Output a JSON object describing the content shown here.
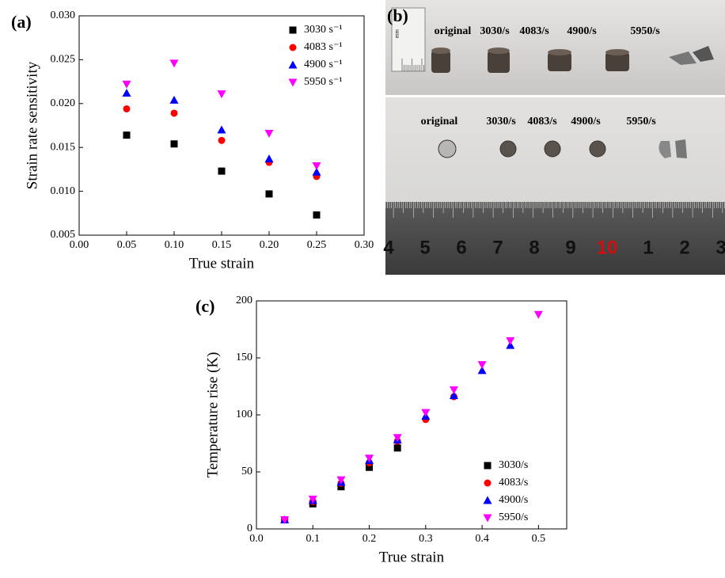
{
  "chart_data": [
    {
      "type": "scatter",
      "label": "(a)",
      "x_label": "True strain",
      "y_label": "Strain rate sensitivity",
      "xlim": [
        0,
        0.3
      ],
      "ylim": [
        0.005,
        0.03
      ],
      "xticks": [
        {
          "value": 0,
          "label": "0.00"
        },
        0.05,
        {
          "value": 0.1,
          "label": "0.10"
        },
        0.15,
        {
          "value": 0.2,
          "label": "0.20"
        },
        0.25,
        {
          "value": 0.3,
          "label": "0.30"
        }
      ],
      "yticks": [
        0.005,
        {
          "value": 0.01,
          "label": "0.010"
        },
        0.015,
        {
          "value": 0.02,
          "label": "0.020"
        },
        0.025,
        {
          "value": 0.03,
          "label": "0.030"
        }
      ],
      "legend": "upper-right",
      "series": [
        {
          "name": "3030 s⁻¹",
          "color": "#000000",
          "marker": "square",
          "x": [
            0.05,
            0.1,
            0.15,
            0.2,
            0.25
          ],
          "values": [
            0.0164,
            0.0154,
            0.0123,
            0.0097,
            0.0073
          ]
        },
        {
          "name": "4083 s⁻¹",
          "color": "#ff0000",
          "marker": "circle",
          "x": [
            0.05,
            0.1,
            0.15,
            0.2,
            0.25
          ],
          "values": [
            0.0194,
            0.0189,
            0.0158,
            0.0133,
            0.0117
          ]
        },
        {
          "name": "4900 s⁻¹",
          "color": "#0000ff",
          "marker": "triangle-up",
          "x": [
            0.05,
            0.1,
            0.15,
            0.2,
            0.25
          ],
          "values": [
            0.0212,
            0.0204,
            0.017,
            0.0137,
            0.0122
          ]
        },
        {
          "name": "5950 s⁻¹",
          "color": "#ff00ff",
          "marker": "triangle-down",
          "x": [
            0.05,
            0.1,
            0.15,
            0.2,
            0.25
          ],
          "values": [
            0.0222,
            0.0246,
            0.0211,
            0.0166,
            0.0129
          ]
        }
      ]
    },
    {
      "type": "scatter",
      "label": "(c)",
      "x_label": "True strain",
      "y_label": "Temperature rise (K)",
      "xlim": [
        0,
        0.55
      ],
      "ylim": [
        0,
        200
      ],
      "xticks": [
        {
          "value": 0,
          "label": "0.0"
        },
        0.1,
        0.2,
        0.3,
        0.4,
        0.5
      ],
      "yticks": [
        0,
        50,
        100,
        150,
        200
      ],
      "legend": "lower-right",
      "series": [
        {
          "name": "3030/s",
          "color": "#000000",
          "marker": "square",
          "x": [
            0.05,
            0.1,
            0.15,
            0.2,
            0.25
          ],
          "values": [
            8,
            22,
            37,
            54,
            71
          ]
        },
        {
          "name": "4083/s",
          "color": "#ff0000",
          "marker": "circle",
          "x": [
            0.05,
            0.1,
            0.15,
            0.2,
            0.25,
            0.3,
            0.35
          ],
          "values": [
            8,
            24,
            40,
            58,
            77,
            96,
            116
          ]
        },
        {
          "name": "4900/s",
          "color": "#0000ff",
          "marker": "triangle-up",
          "x": [
            0.05,
            0.1,
            0.15,
            0.2,
            0.25,
            0.3,
            0.35,
            0.4,
            0.45
          ],
          "values": [
            8,
            25,
            41,
            60,
            78,
            99,
            117,
            139,
            161
          ]
        },
        {
          "name": "5950/s",
          "color": "#ff00ff",
          "marker": "triangle-down",
          "x": [
            0.05,
            0.1,
            0.15,
            0.2,
            0.25,
            0.3,
            0.35,
            0.4,
            0.45,
            0.5
          ],
          "values": [
            8,
            26,
            43,
            62,
            80,
            102,
            122,
            144,
            165,
            188
          ]
        }
      ]
    }
  ],
  "photo": {
    "label": "(b)",
    "scale_unit": "mm",
    "top_labels": [
      "original",
      "3030/s",
      "4083/s",
      "4900/s",
      "5950/s"
    ],
    "bottom_labels": [
      "original",
      "3030/s",
      "4083/s",
      "4900/s",
      "5950/s"
    ],
    "ruler_numbers": [
      "4",
      "5",
      "6",
      "7",
      "8",
      "9",
      "10",
      "1",
      "2",
      "3"
    ]
  }
}
